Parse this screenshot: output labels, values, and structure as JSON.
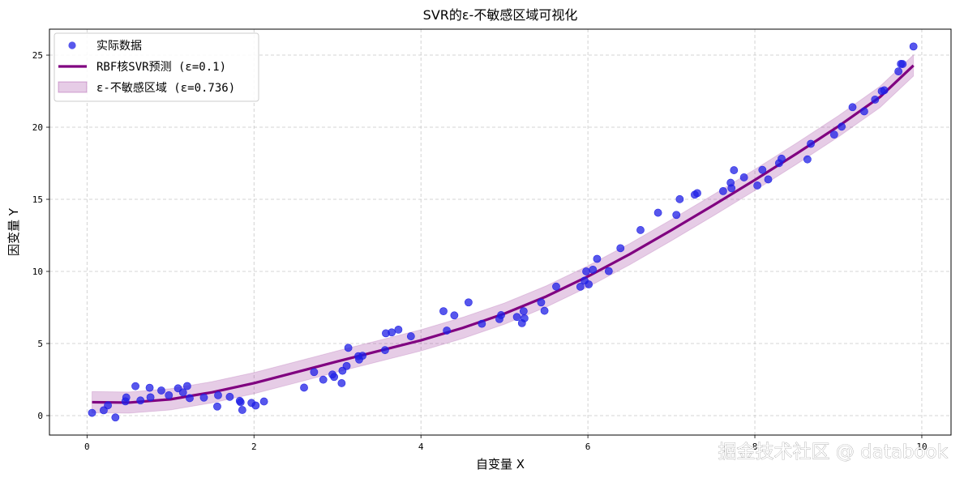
{
  "chart_data": {
    "type": "scatter",
    "title": "SVR的ε-不敏感区域可视化",
    "xlabel": "自变量 X",
    "ylabel": "因变量 Y",
    "xlim": [
      -0.45,
      10.35
    ],
    "ylim": [
      -1.35,
      26.8
    ],
    "xticks": [
      0,
      2,
      4,
      6,
      8,
      10
    ],
    "yticks": [
      0,
      5,
      10,
      15,
      20,
      25
    ],
    "grid": true,
    "legend_position": "top-left",
    "epsilon_band": 0.736,
    "series": [
      {
        "name": "实际数据",
        "kind": "scatter",
        "color": "#1f1fe6",
        "points": [
          [
            0.06,
            0.19
          ],
          [
            0.2,
            0.37
          ],
          [
            0.25,
            0.71
          ],
          [
            0.34,
            -0.13
          ],
          [
            0.46,
            0.99
          ],
          [
            0.47,
            1.26
          ],
          [
            0.58,
            2.04
          ],
          [
            0.64,
            1.05
          ],
          [
            0.75,
            1.93
          ],
          [
            0.76,
            1.27
          ],
          [
            0.89,
            1.74
          ],
          [
            0.98,
            1.41
          ],
          [
            1.09,
            1.89
          ],
          [
            1.15,
            1.61
          ],
          [
            1.2,
            2.05
          ],
          [
            1.23,
            1.21
          ],
          [
            1.4,
            1.25
          ],
          [
            1.56,
            0.63
          ],
          [
            1.57,
            1.41
          ],
          [
            1.71,
            1.3
          ],
          [
            1.83,
            1.02
          ],
          [
            1.84,
            0.93
          ],
          [
            1.86,
            0.39
          ],
          [
            1.97,
            0.88
          ],
          [
            2.02,
            0.7
          ],
          [
            2.12,
            0.98
          ],
          [
            2.6,
            1.94
          ],
          [
            2.72,
            3.02
          ],
          [
            2.83,
            2.49
          ],
          [
            2.94,
            2.85
          ],
          [
            2.96,
            2.68
          ],
          [
            3.05,
            2.25
          ],
          [
            3.06,
            3.11
          ],
          [
            3.11,
            3.44
          ],
          [
            3.13,
            4.7
          ],
          [
            3.25,
            4.12
          ],
          [
            3.26,
            3.89
          ],
          [
            3.3,
            4.15
          ],
          [
            3.57,
            4.54
          ],
          [
            3.58,
            5.71
          ],
          [
            3.65,
            5.77
          ],
          [
            3.73,
            5.96
          ],
          [
            3.88,
            5.5
          ],
          [
            4.27,
            7.24
          ],
          [
            4.31,
            5.9
          ],
          [
            4.4,
            6.95
          ],
          [
            4.57,
            7.85
          ],
          [
            4.73,
            6.37
          ],
          [
            4.94,
            6.69
          ],
          [
            4.96,
            6.97
          ],
          [
            5.15,
            6.84
          ],
          [
            5.21,
            6.41
          ],
          [
            5.23,
            7.24
          ],
          [
            5.24,
            6.75
          ],
          [
            5.44,
            7.85
          ],
          [
            5.48,
            7.27
          ],
          [
            5.62,
            8.95
          ],
          [
            5.91,
            8.94
          ],
          [
            5.96,
            9.36
          ],
          [
            5.98,
            10.0
          ],
          [
            6.01,
            9.1
          ],
          [
            6.06,
            10.12
          ],
          [
            6.11,
            10.87
          ],
          [
            6.25,
            10.02
          ],
          [
            6.39,
            11.61
          ],
          [
            6.63,
            12.87
          ],
          [
            6.84,
            14.07
          ],
          [
            7.06,
            13.92
          ],
          [
            7.1,
            15.01
          ],
          [
            7.28,
            15.32
          ],
          [
            7.31,
            15.43
          ],
          [
            7.62,
            15.57
          ],
          [
            7.71,
            16.15
          ],
          [
            7.72,
            15.77
          ],
          [
            7.75,
            17.02
          ],
          [
            7.87,
            16.52
          ],
          [
            8.03,
            15.96
          ],
          [
            8.09,
            17.04
          ],
          [
            8.16,
            16.38
          ],
          [
            8.29,
            17.51
          ],
          [
            8.32,
            17.82
          ],
          [
            8.63,
            17.77
          ],
          [
            8.67,
            18.85
          ],
          [
            8.95,
            19.49
          ],
          [
            9.04,
            20.04
          ],
          [
            9.17,
            21.39
          ],
          [
            9.31,
            21.1
          ],
          [
            9.44,
            21.92
          ],
          [
            9.52,
            22.5
          ],
          [
            9.55,
            22.56
          ],
          [
            9.72,
            23.87
          ],
          [
            9.75,
            24.39
          ],
          [
            9.77,
            24.38
          ],
          [
            9.9,
            25.6
          ]
        ]
      },
      {
        "name": "RBF核SVR预测 (ε=0.1)",
        "kind": "line",
        "color": "#800080",
        "x": [
          0.06,
          0.5,
          1.0,
          1.5,
          2.0,
          2.5,
          3.0,
          3.5,
          4.0,
          4.5,
          5.0,
          5.5,
          6.0,
          6.5,
          7.0,
          7.5,
          8.0,
          8.5,
          9.0,
          9.5,
          9.9
        ],
        "y": [
          0.93,
          0.9,
          1.13,
          1.62,
          2.25,
          3.0,
          3.76,
          4.49,
          5.22,
          6.08,
          7.07,
          8.26,
          9.65,
          11.19,
          12.86,
          14.58,
          16.34,
          18.17,
          20.06,
          22.1,
          24.28
        ]
      },
      {
        "name": "ε-不敏感区域 (ε=0.736)",
        "kind": "band",
        "color": "#800080",
        "opacity": 0.2
      }
    ]
  },
  "watermark": "掘金技术社区 @ databook"
}
